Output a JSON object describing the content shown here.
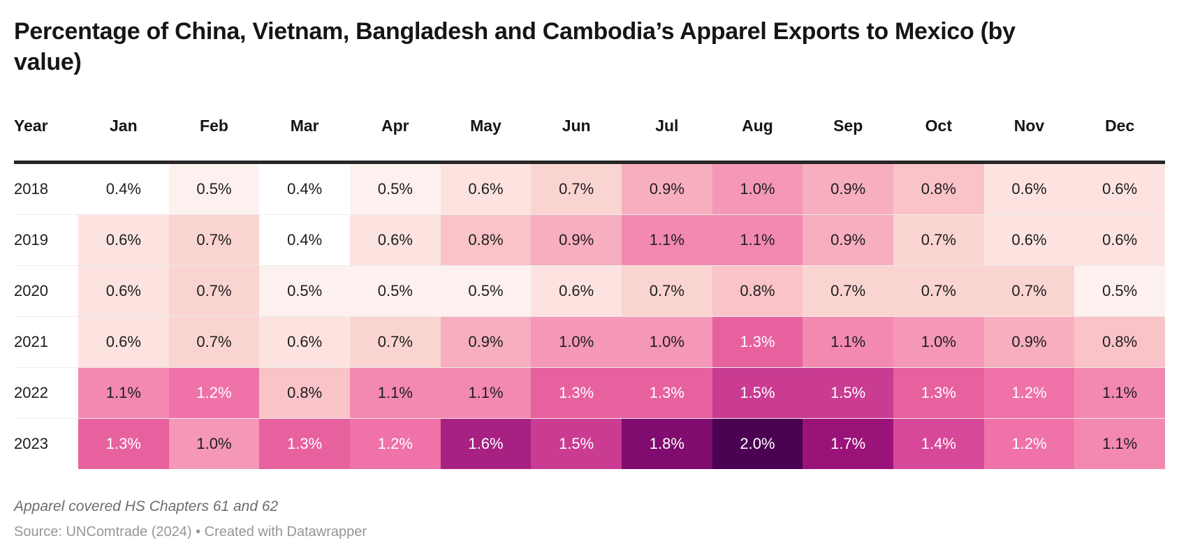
{
  "header": {
    "title": "Percentage of China, Vietnam, Bangladesh and Cambodia’s Apparel Exports to Mexico (by value)"
  },
  "chart_data": {
    "type": "heatmap",
    "title": "Percentage of China, Vietnam, Bangladesh and Cambodia’s Apparel Exports to Mexico (by value)",
    "columns": [
      "Year",
      "Jan",
      "Feb",
      "Mar",
      "Apr",
      "May",
      "Jun",
      "Jul",
      "Aug",
      "Sep",
      "Oct",
      "Nov",
      "Dec"
    ],
    "unit": "%",
    "rows": [
      {
        "year": "2018",
        "values": [
          0.4,
          0.5,
          0.4,
          0.5,
          0.6,
          0.7,
          0.9,
          1.0,
          0.9,
          0.8,
          0.6,
          0.6
        ]
      },
      {
        "year": "2019",
        "values": [
          0.6,
          0.7,
          0.4,
          0.6,
          0.8,
          0.9,
          1.1,
          1.1,
          0.9,
          0.7,
          0.6,
          0.6
        ]
      },
      {
        "year": "2020",
        "values": [
          0.6,
          0.7,
          0.5,
          0.5,
          0.5,
          0.6,
          0.7,
          0.8,
          0.7,
          0.7,
          0.7,
          0.5
        ]
      },
      {
        "year": "2021",
        "values": [
          0.6,
          0.7,
          0.6,
          0.7,
          0.9,
          1.0,
          1.0,
          1.3,
          1.1,
          1.0,
          0.9,
          0.8
        ]
      },
      {
        "year": "2022",
        "values": [
          1.1,
          1.2,
          0.8,
          1.1,
          1.1,
          1.3,
          1.3,
          1.5,
          1.5,
          1.3,
          1.2,
          1.1
        ]
      },
      {
        "year": "2023",
        "values": [
          1.3,
          1.0,
          1.3,
          1.2,
          1.6,
          1.5,
          1.8,
          2.0,
          1.7,
          1.4,
          1.2,
          1.1
        ]
      }
    ],
    "value_range": [
      0.4,
      2.0
    ],
    "color_scale": {
      "0.4": "#ffffff",
      "0.5": "#fdf1f0",
      "0.6": "#fce3e0",
      "0.7": "#fad4d1",
      "0.8": "#f9c3c7",
      "0.9": "#f7aebe",
      "1.0": "#f597b6",
      "1.1": "#f389b1",
      "1.2": "#ef72a8",
      "1.3": "#e7619f",
      "1.4": "#d84899",
      "1.5": "#c93c92",
      "1.6": "#a62181",
      "1.7": "#9a1379",
      "1.8": "#7f0c6e",
      "2.0": "#4c0253"
    },
    "white_text_threshold": 1.2,
    "dark_text_color": "#1d1d1d",
    "light_text_color": "#ffffff",
    "legend": "none",
    "grid": "off"
  },
  "footer": {
    "note": "Apparel covered HS Chapters 61 and 62",
    "source": "Source: UNComtrade (2024) • Created with Datawrapper"
  }
}
